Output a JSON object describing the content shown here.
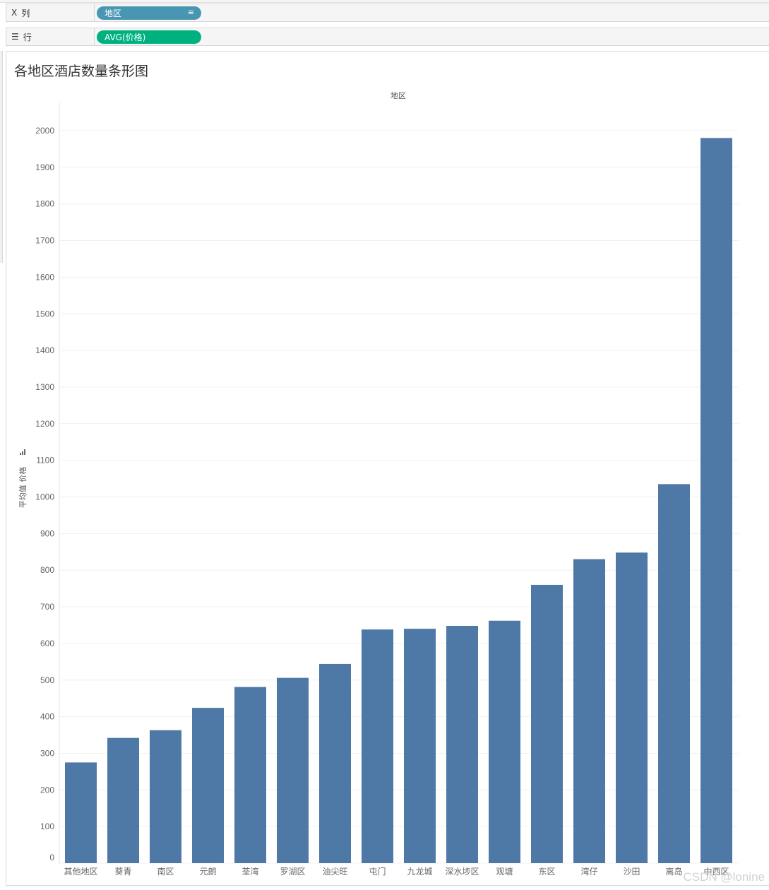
{
  "shelves": {
    "columns": {
      "label": "列",
      "pill": "地区",
      "pill_color": "#4996b2"
    },
    "rows": {
      "label": "行",
      "pill": "AVG(价格)",
      "pill_color": "#00b180"
    }
  },
  "icons": {
    "columns": "column-bars-icon",
    "rows": "row-list-icon",
    "sort": "sort-descending-icon",
    "axis": "bar-chart-icon"
  },
  "watermark": "CSDN @lonine",
  "chart_data": {
    "type": "bar",
    "title": "各地区酒店数量条形图",
    "xlabel": "地区",
    "ylabel": "平均值 价格",
    "categories": [
      "其他地区",
      "葵青",
      "南区",
      "元朗",
      "荃湾",
      "罗湖区",
      "油尖旺",
      "屯门",
      "九龙城",
      "深水埗区",
      "观塘",
      "东区",
      "湾仔",
      "沙田",
      "离岛",
      "中西区"
    ],
    "values": [
      275,
      342,
      363,
      424,
      481,
      506,
      544,
      638,
      640,
      648,
      662,
      760,
      830,
      848,
      1035,
      1980
    ],
    "ylim": [
      0,
      2000
    ],
    "yticks": [
      0,
      100,
      200,
      300,
      400,
      500,
      600,
      700,
      800,
      900,
      1000,
      1100,
      1200,
      1300,
      1400,
      1500,
      1600,
      1700,
      1800,
      1900,
      2000
    ],
    "bar_color": "#4e79a7",
    "grid": true,
    "legend": "none"
  }
}
